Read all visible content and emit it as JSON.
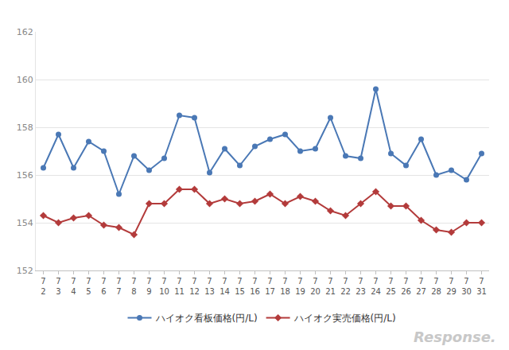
{
  "chart_data": {
    "type": "line",
    "categories": [
      "7\n2",
      "7\n3",
      "7\n4",
      "7\n5",
      "7\n6",
      "7\n7",
      "7\n8",
      "7\n9",
      "7\n10",
      "7\n11",
      "7\n12",
      "7\n13",
      "7\n14",
      "7\n15",
      "7\n16",
      "7\n17",
      "7\n18",
      "7\n19",
      "7\n20",
      "7\n21",
      "7\n22",
      "7\n23",
      "7\n24",
      "7\n25",
      "7\n26",
      "7\n27",
      "7\n28",
      "7\n29",
      "7\n30",
      "7\n31"
    ],
    "series": [
      {
        "name": "ハイオク看板価格(円/L)",
        "color": "#4a78b5",
        "marker": "circle",
        "line_style": "solid",
        "values": [
          156.3,
          157.7,
          156.3,
          157.4,
          157.0,
          155.2,
          156.8,
          156.2,
          156.7,
          158.5,
          158.4,
          156.1,
          157.1,
          156.4,
          157.2,
          157.5,
          157.7,
          157.0,
          157.1,
          158.4,
          156.8,
          156.7,
          159.6,
          156.9,
          156.4,
          157.5,
          156.0,
          156.2,
          155.8,
          156.9
        ]
      },
      {
        "name": "ハイオク実売価格(円/L)",
        "color": "#b33b3b",
        "marker": "diamond",
        "line_style": "solid",
        "values": [
          154.3,
          154.0,
          154.2,
          154.3,
          153.9,
          153.8,
          153.5,
          154.8,
          154.8,
          155.4,
          155.4,
          154.8,
          155.0,
          154.8,
          154.9,
          155.2,
          154.8,
          155.1,
          154.9,
          154.5,
          154.3,
          154.8,
          155.3,
          154.7,
          154.7,
          154.1,
          153.7,
          153.6,
          154.0,
          154.0
        ]
      }
    ],
    "ylim": [
      152,
      162
    ],
    "yticks": [
      152,
      154,
      156,
      158,
      160,
      162
    ],
    "grid": true,
    "legend": "bottom",
    "annotations": [
      {
        "text": "Response."
      }
    ]
  }
}
